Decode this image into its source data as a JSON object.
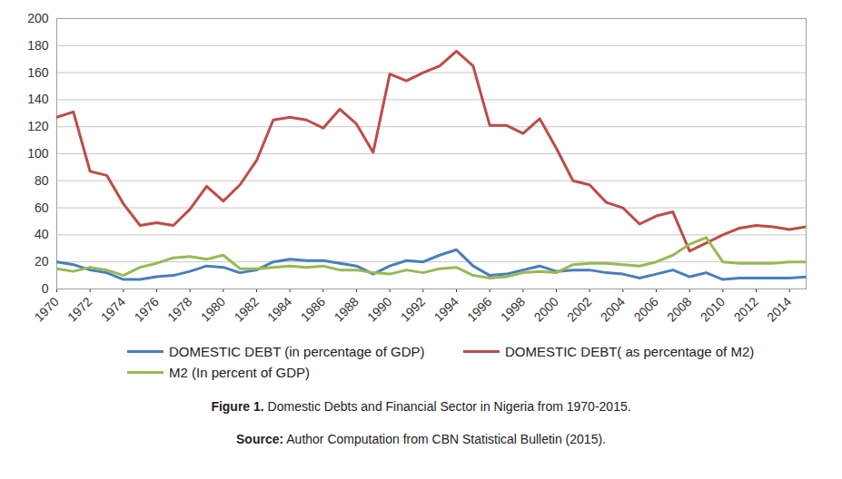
{
  "chart_data": {
    "type": "line",
    "caption": {
      "label": "Figure 1.",
      "text": "Domestic Debts and Financial Sector in Nigeria from 1970-2015."
    },
    "source": {
      "label": "Source:",
      "text": "Author Computation from CBN Statistical Bulletin (2015)."
    },
    "x": [
      1970,
      1971,
      1972,
      1973,
      1974,
      1975,
      1976,
      1977,
      1978,
      1979,
      1980,
      1981,
      1982,
      1983,
      1984,
      1985,
      1986,
      1987,
      1988,
      1989,
      1990,
      1991,
      1992,
      1993,
      1994,
      1995,
      1996,
      1997,
      1998,
      1999,
      2000,
      2001,
      2002,
      2003,
      2004,
      2005,
      2006,
      2007,
      2008,
      2009,
      2010,
      2011,
      2012,
      2013,
      2014,
      2015
    ],
    "xlim": [
      1970,
      2015
    ],
    "xticks": [
      1970,
      1972,
      1974,
      1976,
      1978,
      1980,
      1982,
      1984,
      1986,
      1988,
      1990,
      1992,
      1994,
      1996,
      1998,
      2000,
      2002,
      2004,
      2006,
      2008,
      2010,
      2012,
      2014
    ],
    "ylim": [
      0,
      200
    ],
    "yticks": [
      0,
      20,
      40,
      60,
      80,
      100,
      120,
      140,
      160,
      180,
      200
    ],
    "grid": true,
    "legend": "bottom",
    "series": [
      {
        "name": "DOMESTIC DEBT (in percentage of GDP)",
        "color": "#4a7ebb",
        "values": [
          20,
          18,
          14,
          12,
          7,
          7,
          9,
          10,
          13,
          17,
          16,
          12,
          14,
          20,
          22,
          21,
          21,
          19,
          17,
          11,
          17,
          21,
          20,
          25,
          29,
          17,
          10,
          11,
          14,
          17,
          13,
          14,
          14,
          12,
          11,
          8,
          11,
          14,
          9,
          12,
          7,
          8,
          8,
          8,
          8,
          9
        ]
      },
      {
        "name": "DOMESTIC DEBT( as percentage of M2)",
        "color": "#be4b48",
        "values": [
          127,
          131,
          87,
          84,
          63,
          47,
          49,
          47,
          59,
          76,
          65,
          77,
          95,
          125,
          127,
          125,
          119,
          133,
          122,
          101,
          159,
          154,
          160,
          165,
          176,
          165,
          121,
          121,
          115,
          126,
          104,
          80,
          77,
          64,
          60,
          48,
          54,
          57,
          28,
          34,
          40,
          45,
          47,
          46,
          44,
          46
        ]
      },
      {
        "name": "M2 (In percent of GDP)",
        "color": "#98b954",
        "values": [
          15,
          13,
          16,
          14,
          10,
          16,
          19,
          23,
          24,
          22,
          25,
          15,
          15,
          16,
          17,
          16,
          17,
          14,
          14,
          12,
          11,
          14,
          12,
          15,
          16,
          10,
          8,
          9,
          12,
          13,
          12,
          18,
          19,
          19,
          18,
          17,
          20,
          25,
          33,
          38,
          20,
          19,
          19,
          19,
          20,
          20
        ]
      }
    ]
  }
}
